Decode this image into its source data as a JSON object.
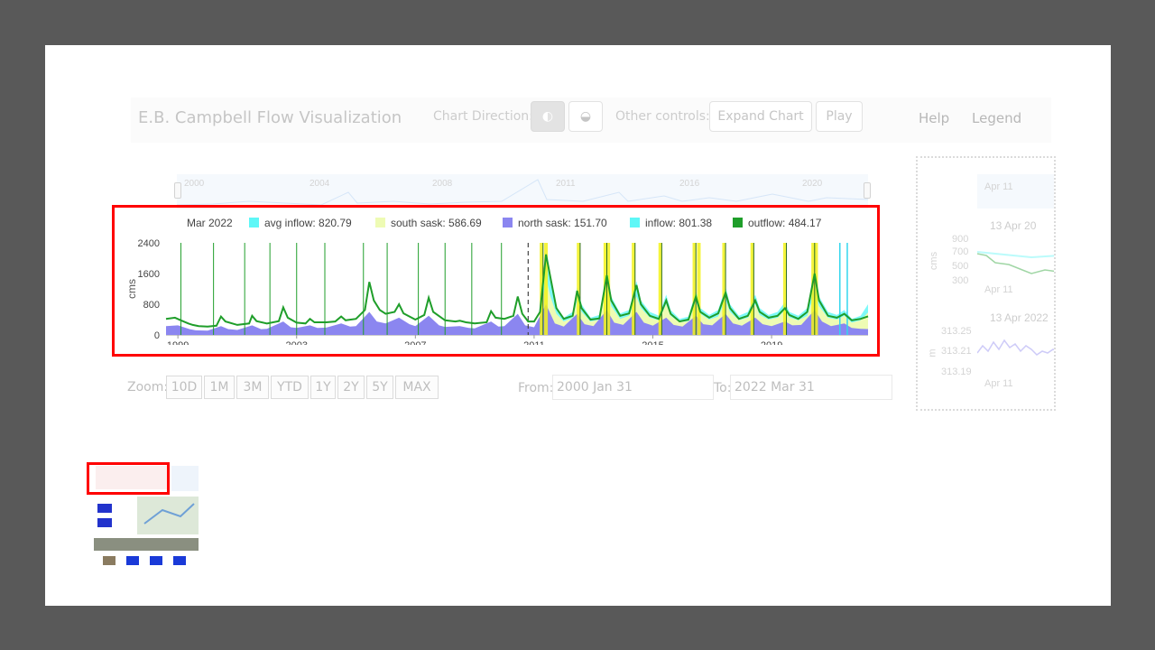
{
  "navbar": {
    "title": "E.B. Campbell Flow Visualization",
    "chart_direction_label": "Chart Direction:",
    "direction_icons": [
      "half-circle-vertical-icon",
      "half-circle-horizontal-icon"
    ],
    "other_controls_label": "Other controls:",
    "expand_label": "Expand Chart",
    "play_label": "Play",
    "help_label": "Help",
    "legend_label": "Legend"
  },
  "navigator": {
    "years": [
      "2000",
      "2004",
      "2008",
      "2011",
      "2016",
      "2020"
    ]
  },
  "zoom": {
    "label": "Zoom:",
    "buttons": [
      "10D",
      "1M",
      "3M",
      "YTD",
      "1Y",
      "2Y",
      "5Y",
      "MAX"
    ]
  },
  "range": {
    "from_label": "From:",
    "from_value": "2000 Jan 31",
    "to_label": "To:",
    "to_value": "2022 Mar 31"
  },
  "side_panel": {
    "top_label": "Apr 11",
    "date1": "13 Apr 20",
    "unit1": "cms",
    "ticks1": [
      "900",
      "700",
      "500",
      "300"
    ],
    "bottom1": "Apr 11",
    "date2": "13 Apr 2022",
    "unit2": "m",
    "ticks2": [
      "313.25",
      "313.21",
      "313.19"
    ],
    "bottom2": "Apr 11"
  },
  "chart_data": {
    "type": "area",
    "title": "",
    "legend_date": "Mar 2022",
    "legend": [
      {
        "name": "avg inflow",
        "value": "820.79",
        "color": "#5ef7f7"
      },
      {
        "name": "south sask",
        "value": "586.69",
        "color": "#eefbb4"
      },
      {
        "name": "north sask",
        "value": "151.70",
        "color": "#8b86f0"
      },
      {
        "name": "inflow",
        "value": "801.38",
        "color": "#5ef7f7"
      },
      {
        "name": "outflow",
        "value": "484.17",
        "color": "#1f9e2a"
      }
    ],
    "ylabel": "cms",
    "ylim": [
      0,
      2400
    ],
    "y_ticks": [
      "0",
      "800",
      "1600",
      "2400"
    ],
    "x_ticks": [
      "1999",
      "2003",
      "2007",
      "2011",
      "2015",
      "2019"
    ],
    "xlim": [
      1998.6,
      2022.25
    ],
    "outflow": [
      [
        1998.6,
        420
      ],
      [
        1998.9,
        450
      ],
      [
        1999.1,
        380
      ],
      [
        1999.35,
        300
      ],
      [
        1999.5,
        260
      ],
      [
        1999.7,
        230
      ],
      [
        2000.0,
        220
      ],
      [
        2000.3,
        240
      ],
      [
        2000.45,
        480
      ],
      [
        2000.6,
        350
      ],
      [
        2001.0,
        260
      ],
      [
        2001.4,
        300
      ],
      [
        2001.5,
        500
      ],
      [
        2001.65,
        360
      ],
      [
        2002.0,
        300
      ],
      [
        2002.4,
        360
      ],
      [
        2002.55,
        720
      ],
      [
        2002.7,
        450
      ],
      [
        2003.0,
        320
      ],
      [
        2003.3,
        300
      ],
      [
        2003.45,
        420
      ],
      [
        2003.6,
        330
      ],
      [
        2004.0,
        330
      ],
      [
        2004.3,
        350
      ],
      [
        2004.5,
        480
      ],
      [
        2004.65,
        380
      ],
      [
        2005.0,
        420
      ],
      [
        2005.3,
        650
      ],
      [
        2005.45,
        1380
      ],
      [
        2005.6,
        900
      ],
      [
        2005.8,
        650
      ],
      [
        2006.0,
        550
      ],
      [
        2006.3,
        600
      ],
      [
        2006.45,
        800
      ],
      [
        2006.6,
        560
      ],
      [
        2007.0,
        400
      ],
      [
        2007.3,
        520
      ],
      [
        2007.45,
        970
      ],
      [
        2007.6,
        600
      ],
      [
        2008.0,
        380
      ],
      [
        2008.35,
        350
      ],
      [
        2008.5,
        370
      ],
      [
        2008.7,
        330
      ],
      [
        2009.0,
        300
      ],
      [
        2009.4,
        330
      ],
      [
        2009.55,
        620
      ],
      [
        2009.7,
        450
      ],
      [
        2010.0,
        420
      ],
      [
        2010.3,
        500
      ],
      [
        2010.45,
        1000
      ],
      [
        2010.6,
        550
      ],
      [
        2010.8,
        350
      ],
      [
        2011.0,
        350
      ],
      [
        2011.2,
        600
      ],
      [
        2011.4,
        2100
      ],
      [
        2011.55,
        1500
      ],
      [
        2011.75,
        700
      ],
      [
        2012.0,
        420
      ],
      [
        2012.3,
        500
      ],
      [
        2012.45,
        1150
      ],
      [
        2012.6,
        700
      ],
      [
        2012.9,
        400
      ],
      [
        2013.2,
        430
      ],
      [
        2013.45,
        1550
      ],
      [
        2013.6,
        900
      ],
      [
        2013.9,
        500
      ],
      [
        2014.2,
        560
      ],
      [
        2014.45,
        1300
      ],
      [
        2014.6,
        800
      ],
      [
        2014.9,
        500
      ],
      [
        2015.2,
        420
      ],
      [
        2015.45,
        900
      ],
      [
        2015.6,
        550
      ],
      [
        2015.9,
        350
      ],
      [
        2016.2,
        400
      ],
      [
        2016.45,
        1000
      ],
      [
        2016.6,
        600
      ],
      [
        2016.9,
        450
      ],
      [
        2017.2,
        560
      ],
      [
        2017.45,
        1100
      ],
      [
        2017.6,
        700
      ],
      [
        2017.9,
        420
      ],
      [
        2018.2,
        500
      ],
      [
        2018.45,
        900
      ],
      [
        2018.6,
        600
      ],
      [
        2018.9,
        450
      ],
      [
        2019.2,
        500
      ],
      [
        2019.45,
        700
      ],
      [
        2019.6,
        520
      ],
      [
        2019.9,
        420
      ],
      [
        2020.2,
        600
      ],
      [
        2020.45,
        1600
      ],
      [
        2020.6,
        900
      ],
      [
        2020.9,
        500
      ],
      [
        2021.2,
        450
      ],
      [
        2021.45,
        550
      ],
      [
        2021.7,
        380
      ],
      [
        2022.0,
        420
      ],
      [
        2022.25,
        484
      ]
    ],
    "inflow": [
      [
        2011.2,
        600
      ],
      [
        2011.4,
        2000
      ],
      [
        2011.55,
        1400
      ],
      [
        2011.75,
        750
      ],
      [
        2012.0,
        450
      ],
      [
        2012.3,
        600
      ],
      [
        2012.45,
        1250
      ],
      [
        2012.6,
        800
      ],
      [
        2012.9,
        450
      ],
      [
        2013.2,
        520
      ],
      [
        2013.45,
        1700
      ],
      [
        2013.6,
        1000
      ],
      [
        2013.9,
        560
      ],
      [
        2014.2,
        650
      ],
      [
        2014.45,
        1400
      ],
      [
        2014.6,
        900
      ],
      [
        2014.9,
        600
      ],
      [
        2015.2,
        500
      ],
      [
        2015.45,
        1050
      ],
      [
        2015.6,
        650
      ],
      [
        2015.9,
        420
      ],
      [
        2016.2,
        480
      ],
      [
        2016.45,
        1150
      ],
      [
        2016.6,
        700
      ],
      [
        2016.9,
        520
      ],
      [
        2017.2,
        650
      ],
      [
        2017.45,
        1250
      ],
      [
        2017.6,
        800
      ],
      [
        2017.9,
        500
      ],
      [
        2018.2,
        600
      ],
      [
        2018.45,
        1050
      ],
      [
        2018.6,
        700
      ],
      [
        2018.9,
        520
      ],
      [
        2019.2,
        600
      ],
      [
        2019.45,
        850
      ],
      [
        2019.6,
        600
      ],
      [
        2019.9,
        500
      ],
      [
        2020.2,
        700
      ],
      [
        2020.45,
        1500
      ],
      [
        2020.6,
        1000
      ],
      [
        2020.9,
        600
      ],
      [
        2021.2,
        520
      ],
      [
        2021.45,
        650
      ],
      [
        2021.7,
        420
      ],
      [
        2022.0,
        500
      ],
      [
        2022.25,
        801
      ]
    ],
    "south_sask": [
      [
        2011.2,
        450
      ],
      [
        2011.4,
        1500
      ],
      [
        2011.55,
        1000
      ],
      [
        2011.75,
        550
      ],
      [
        2012.0,
        350
      ],
      [
        2012.3,
        450
      ],
      [
        2012.45,
        900
      ],
      [
        2012.6,
        600
      ],
      [
        2012.9,
        350
      ],
      [
        2013.2,
        400
      ],
      [
        2013.45,
        1300
      ],
      [
        2013.6,
        750
      ],
      [
        2013.9,
        420
      ],
      [
        2014.2,
        500
      ],
      [
        2014.45,
        1000
      ],
      [
        2014.6,
        700
      ],
      [
        2014.9,
        450
      ],
      [
        2015.2,
        380
      ],
      [
        2015.45,
        800
      ],
      [
        2015.6,
        500
      ],
      [
        2015.9,
        330
      ],
      [
        2016.2,
        360
      ],
      [
        2016.45,
        850
      ],
      [
        2016.6,
        550
      ],
      [
        2016.9,
        400
      ],
      [
        2017.2,
        480
      ],
      [
        2017.45,
        900
      ],
      [
        2017.6,
        600
      ],
      [
        2017.9,
        380
      ],
      [
        2018.2,
        450
      ],
      [
        2018.45,
        800
      ],
      [
        2018.6,
        520
      ],
      [
        2018.9,
        400
      ],
      [
        2019.2,
        450
      ],
      [
        2019.45,
        650
      ],
      [
        2019.6,
        460
      ],
      [
        2019.9,
        380
      ],
      [
        2020.2,
        500
      ],
      [
        2020.45,
        1100
      ],
      [
        2020.6,
        750
      ],
      [
        2020.9,
        450
      ],
      [
        2021.2,
        400
      ],
      [
        2021.45,
        500
      ],
      [
        2021.7,
        320
      ],
      [
        2022.0,
        380
      ],
      [
        2022.25,
        587
      ]
    ],
    "north_sask": [
      [
        1998.6,
        230
      ],
      [
        1999.0,
        250
      ],
      [
        1999.4,
        150
      ],
      [
        1999.6,
        120
      ],
      [
        2000.0,
        110
      ],
      [
        2000.45,
        230
      ],
      [
        2000.7,
        150
      ],
      [
        2001.0,
        130
      ],
      [
        2001.5,
        250
      ],
      [
        2001.8,
        150
      ],
      [
        2002.0,
        160
      ],
      [
        2002.55,
        350
      ],
      [
        2002.8,
        200
      ],
      [
        2003.0,
        180
      ],
      [
        2003.45,
        250
      ],
      [
        2003.7,
        180
      ],
      [
        2004.0,
        190
      ],
      [
        2004.5,
        300
      ],
      [
        2004.8,
        220
      ],
      [
        2005.0,
        230
      ],
      [
        2005.45,
        600
      ],
      [
        2005.7,
        350
      ],
      [
        2006.0,
        300
      ],
      [
        2006.45,
        450
      ],
      [
        2006.8,
        280
      ],
      [
        2007.0,
        230
      ],
      [
        2007.45,
        500
      ],
      [
        2007.8,
        250
      ],
      [
        2008.0,
        210
      ],
      [
        2008.5,
        230
      ],
      [
        2008.8,
        180
      ],
      [
        2009.0,
        170
      ],
      [
        2009.55,
        350
      ],
      [
        2009.8,
        220
      ],
      [
        2010.0,
        230
      ],
      [
        2010.45,
        550
      ],
      [
        2010.7,
        250
      ],
      [
        2011.0,
        200
      ],
      [
        2011.4,
        800
      ],
      [
        2011.7,
        300
      ],
      [
        2012.0,
        220
      ],
      [
        2012.45,
        550
      ],
      [
        2012.7,
        280
      ],
      [
        2013.0,
        230
      ],
      [
        2013.45,
        650
      ],
      [
        2013.7,
        320
      ],
      [
        2014.0,
        260
      ],
      [
        2014.45,
        600
      ],
      [
        2014.7,
        320
      ],
      [
        2015.0,
        240
      ],
      [
        2015.45,
        450
      ],
      [
        2015.7,
        260
      ],
      [
        2016.0,
        220
      ],
      [
        2016.45,
        500
      ],
      [
        2016.7,
        280
      ],
      [
        2017.0,
        250
      ],
      [
        2017.45,
        550
      ],
      [
        2017.7,
        300
      ],
      [
        2018.0,
        240
      ],
      [
        2018.45,
        450
      ],
      [
        2018.7,
        280
      ],
      [
        2019.0,
        230
      ],
      [
        2019.45,
        350
      ],
      [
        2019.7,
        250
      ],
      [
        2020.0,
        260
      ],
      [
        2020.45,
        650
      ],
      [
        2020.7,
        350
      ],
      [
        2021.0,
        230
      ],
      [
        2021.45,
        300
      ],
      [
        2021.7,
        180
      ],
      [
        2022.0,
        160
      ],
      [
        2022.25,
        152
      ]
    ],
    "green_markers": [
      1999.1,
      2000.2,
      2001.25,
      2002.1,
      2003.0,
      2003.95,
      2005.25,
      2006.05,
      2007.1,
      2008.0,
      2008.9,
      2009.9
    ],
    "yellow_markers": [
      2011.25,
      2011.4,
      2012.5,
      2013.4,
      2013.5,
      2014.35,
      2015.25,
      2016.4,
      2016.55,
      2017.4,
      2018.35,
      2019.45,
      2020.4,
      2020.5
    ],
    "dark_markers": [
      2011.3,
      2012.55,
      2013.45,
      2014.4,
      2015.3,
      2016.45,
      2017.45,
      2018.4,
      2019.5,
      2020.45
    ],
    "cyan_markers": [
      2021.3,
      2021.55
    ],
    "dashed_marker": 2010.8
  }
}
